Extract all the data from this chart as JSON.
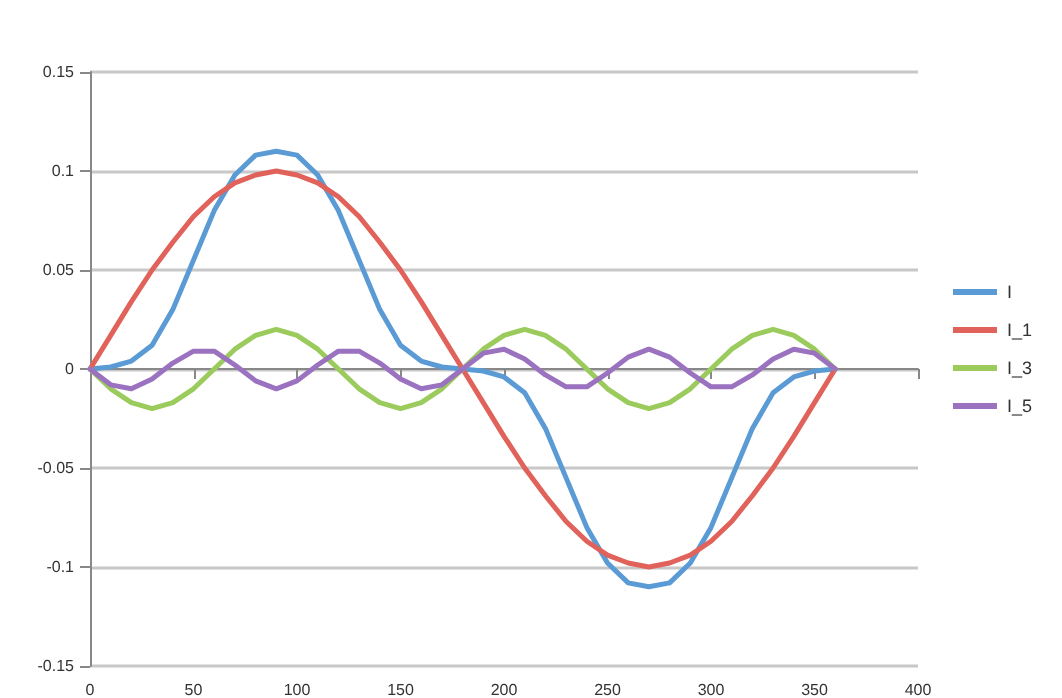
{
  "chart_data": {
    "type": "line",
    "x": [
      0,
      10,
      20,
      30,
      40,
      50,
      60,
      70,
      80,
      90,
      100,
      110,
      120,
      130,
      140,
      150,
      160,
      170,
      180,
      190,
      200,
      210,
      220,
      230,
      240,
      250,
      260,
      270,
      280,
      290,
      300,
      310,
      320,
      330,
      340,
      350,
      360
    ],
    "series": [
      {
        "name": "I",
        "color": "#5b9bd5",
        "values": [
          0,
          0.001,
          0.004,
          0.012,
          0.03,
          0.055,
          0.08,
          0.098,
          0.108,
          0.11,
          0.108,
          0.098,
          0.08,
          0.055,
          0.03,
          0.012,
          0.004,
          0.001,
          0,
          -0.001,
          -0.004,
          -0.012,
          -0.03,
          -0.055,
          -0.08,
          -0.098,
          -0.108,
          -0.11,
          -0.108,
          -0.098,
          -0.08,
          -0.055,
          -0.03,
          -0.012,
          -0.004,
          -0.001,
          0
        ]
      },
      {
        "name": "I_1",
        "color": "#e0625a",
        "values": [
          0,
          0.017,
          0.034,
          0.05,
          0.064,
          0.077,
          0.087,
          0.094,
          0.098,
          0.1,
          0.098,
          0.094,
          0.087,
          0.077,
          0.064,
          0.05,
          0.034,
          0.017,
          0,
          -0.017,
          -0.034,
          -0.05,
          -0.064,
          -0.077,
          -0.087,
          -0.094,
          -0.098,
          -0.1,
          -0.098,
          -0.094,
          -0.087,
          -0.077,
          -0.064,
          -0.05,
          -0.034,
          -0.017,
          0
        ]
      },
      {
        "name": "I_3",
        "color": "#9bcb5c",
        "values": [
          0,
          -0.01,
          -0.017,
          -0.02,
          -0.017,
          -0.01,
          0,
          0.01,
          0.017,
          0.02,
          0.017,
          0.01,
          0,
          -0.01,
          -0.017,
          -0.02,
          -0.017,
          -0.01,
          0,
          0.01,
          0.017,
          0.02,
          0.017,
          0.01,
          0,
          -0.01,
          -0.017,
          -0.02,
          -0.017,
          -0.01,
          0,
          0.01,
          0.017,
          0.02,
          0.017,
          0.01,
          0
        ]
      },
      {
        "name": "I_5",
        "color": "#9a72c0",
        "values": [
          0,
          -0.008,
          -0.01,
          -0.005,
          0.003,
          0.009,
          0.009,
          0.002,
          -0.006,
          -0.01,
          -0.006,
          0.002,
          0.009,
          0.009,
          0.003,
          -0.005,
          -0.01,
          -0.008,
          0,
          0.008,
          0.01,
          0.005,
          -0.003,
          -0.009,
          -0.009,
          -0.002,
          0.006,
          0.01,
          0.006,
          -0.002,
          -0.009,
          -0.009,
          -0.003,
          0.005,
          0.01,
          0.008,
          0
        ]
      }
    ],
    "xlim": [
      0,
      400
    ],
    "xticks": [
      0,
      50,
      100,
      150,
      200,
      250,
      300,
      350,
      400
    ],
    "ylim": [
      -0.15,
      0.15
    ],
    "yticks": [
      -0.15,
      -0.1,
      -0.05,
      0,
      0.05,
      0.1,
      0.15
    ],
    "grid": "y",
    "legend": "right",
    "marker": "none",
    "line_style": "solid"
  }
}
